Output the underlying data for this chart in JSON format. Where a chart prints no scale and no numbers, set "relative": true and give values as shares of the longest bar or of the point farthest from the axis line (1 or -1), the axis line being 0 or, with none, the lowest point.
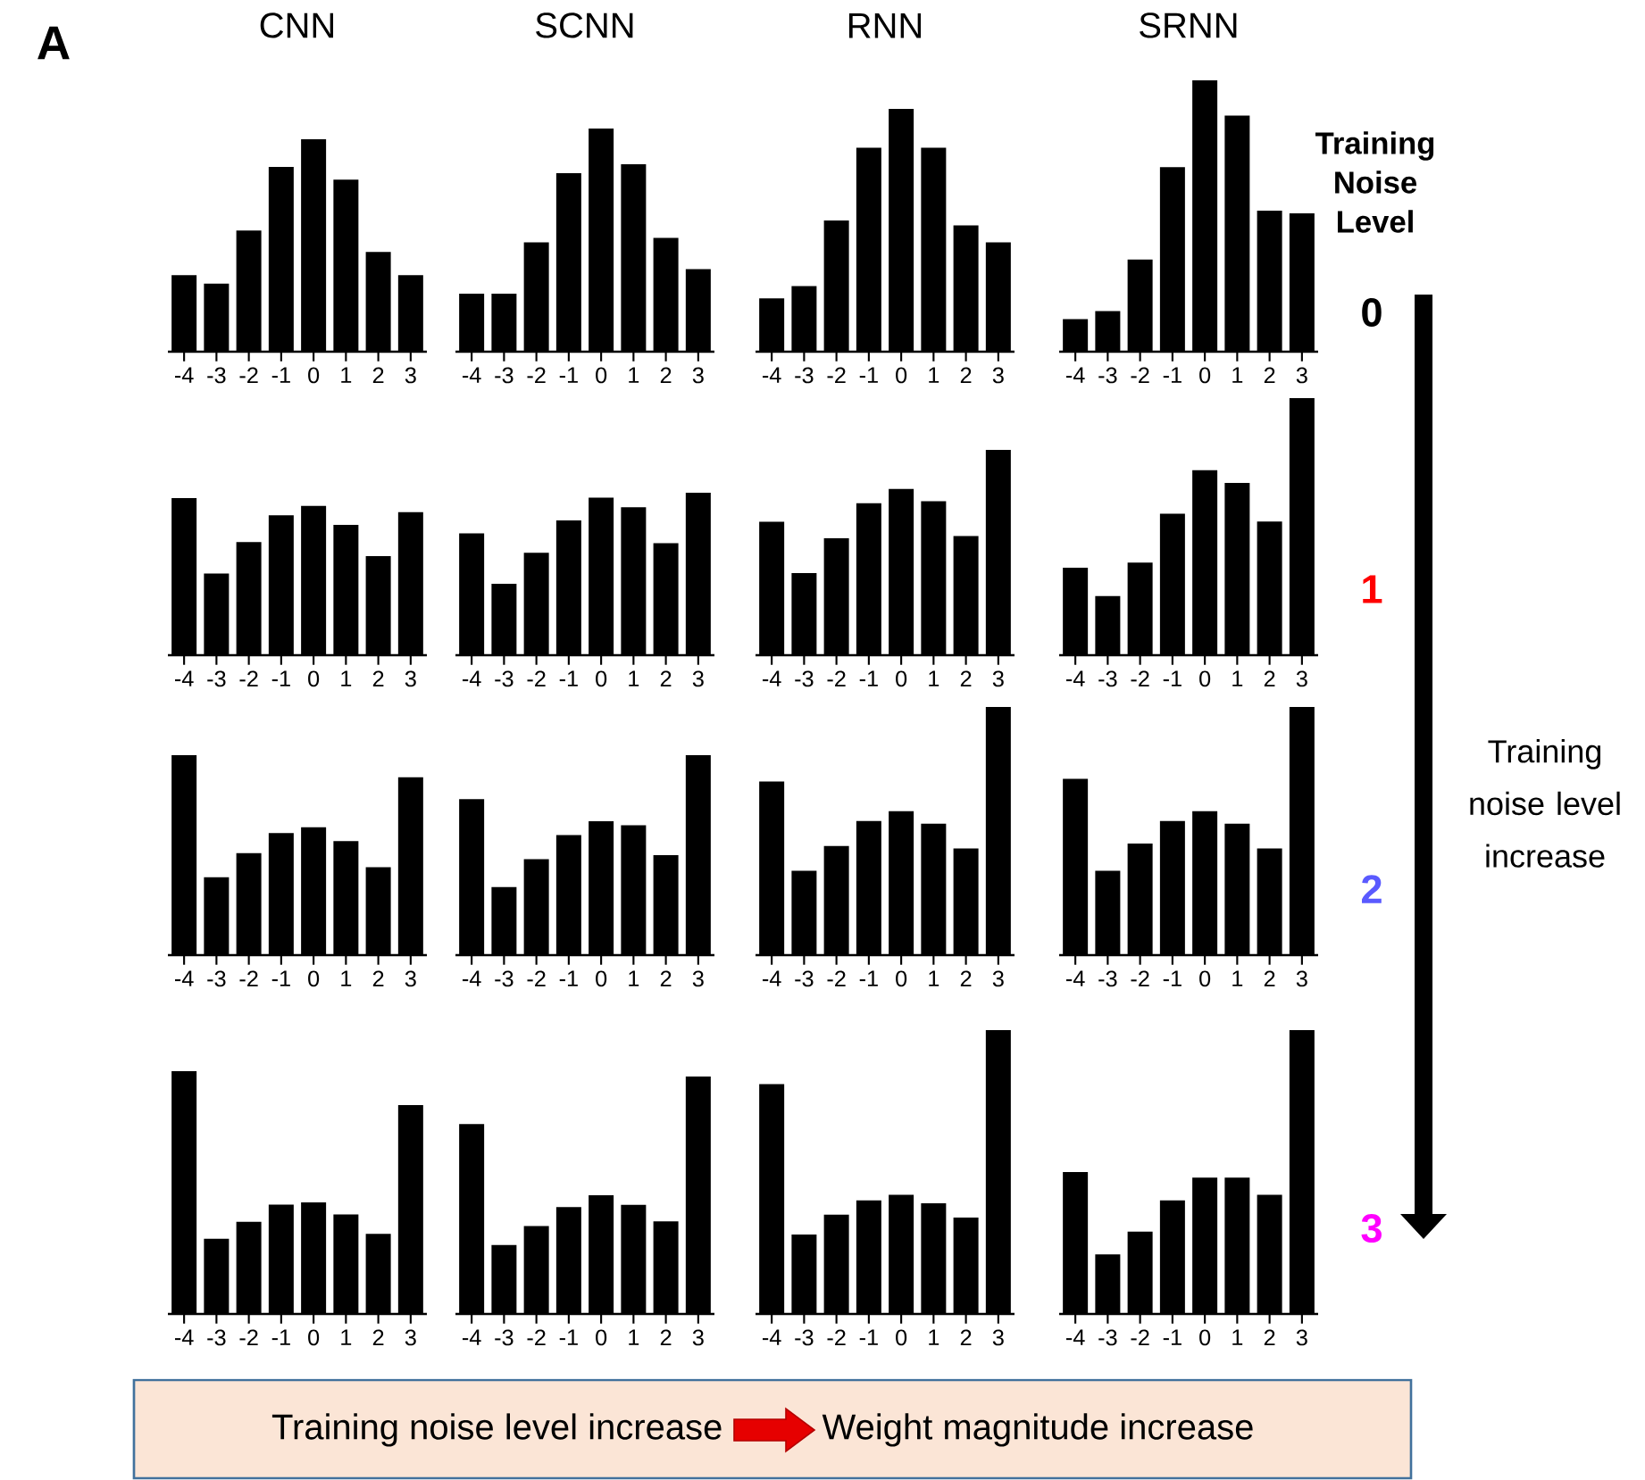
{
  "chart_data": [
    {
      "type": "bar",
      "title": "CNN",
      "relative": true,
      "color": "#000000",
      "categories": [
        "-4",
        "-3",
        "-2",
        "-1",
        "0",
        "1",
        "2",
        "3"
      ],
      "values": [
        0.36,
        0.32,
        0.57,
        0.87,
        1,
        0.81,
        0.47,
        0.36
      ]
    },
    {
      "type": "bar",
      "title": "SCNN",
      "relative": true,
      "color": "#000000",
      "categories": [
        "-4",
        "-3",
        "-2",
        "-1",
        "0",
        "1",
        "2",
        "3"
      ],
      "values": [
        0.26,
        0.26,
        0.49,
        0.8,
        1,
        0.84,
        0.51,
        0.37
      ]
    },
    {
      "type": "bar",
      "title": "RNN",
      "relative": true,
      "color": "#000000",
      "categories": [
        "-4",
        "-3",
        "-2",
        "-1",
        "0",
        "1",
        "2",
        "3"
      ],
      "values": [
        0.22,
        0.27,
        0.54,
        0.84,
        1,
        0.84,
        0.52,
        0.45
      ]
    },
    {
      "type": "bar",
      "title": "SRNN",
      "relative": true,
      "color": "#000000",
      "categories": [
        "-4",
        "-3",
        "-2",
        "-1",
        "0",
        "1",
        "2",
        "3"
      ],
      "values": [
        0.12,
        0.15,
        0.34,
        0.68,
        1,
        0.87,
        0.52,
        0.51
      ]
    },
    {
      "type": "bar",
      "relative": true,
      "color": "#000000",
      "categories": [
        "-4",
        "-3",
        "-2",
        "-1",
        "0",
        "1",
        "2",
        "3"
      ],
      "values": [
        1,
        0.52,
        0.72,
        0.89,
        0.95,
        0.83,
        0.63,
        0.91
      ]
    },
    {
      "type": "bar",
      "relative": true,
      "color": "#000000",
      "categories": [
        "-4",
        "-3",
        "-2",
        "-1",
        "0",
        "1",
        "2",
        "3"
      ],
      "values": [
        0.75,
        0.44,
        0.63,
        0.83,
        0.97,
        0.91,
        0.69,
        1
      ]
    },
    {
      "type": "bar",
      "relative": true,
      "color": "#000000",
      "categories": [
        "-4",
        "-3",
        "-2",
        "-1",
        "0",
        "1",
        "2",
        "3"
      ],
      "values": [
        0.65,
        0.4,
        0.57,
        0.74,
        0.81,
        0.75,
        0.58,
        1
      ]
    },
    {
      "type": "bar",
      "relative": true,
      "color": "#000000",
      "categories": [
        "-4",
        "-3",
        "-2",
        "-1",
        "0",
        "1",
        "2",
        "3"
      ],
      "values": [
        0.34,
        0.23,
        0.36,
        0.55,
        0.72,
        0.67,
        0.52,
        1
      ]
    },
    {
      "type": "bar",
      "relative": true,
      "color": "#000000",
      "categories": [
        "-4",
        "-3",
        "-2",
        "-1",
        "0",
        "1",
        "2",
        "3"
      ],
      "values": [
        1,
        0.39,
        0.51,
        0.61,
        0.64,
        0.57,
        0.44,
        0.89
      ]
    },
    {
      "type": "bar",
      "relative": true,
      "color": "#000000",
      "categories": [
        "-4",
        "-3",
        "-2",
        "-1",
        "0",
        "1",
        "2",
        "3"
      ],
      "values": [
        0.78,
        0.34,
        0.48,
        0.6,
        0.67,
        0.65,
        0.5,
        1
      ]
    },
    {
      "type": "bar",
      "relative": true,
      "color": "#000000",
      "categories": [
        "-4",
        "-3",
        "-2",
        "-1",
        "0",
        "1",
        "2",
        "3"
      ],
      "values": [
        0.7,
        0.34,
        0.44,
        0.54,
        0.58,
        0.53,
        0.43,
        1
      ]
    },
    {
      "type": "bar",
      "relative": true,
      "color": "#000000",
      "categories": [
        "-4",
        "-3",
        "-2",
        "-1",
        "0",
        "1",
        "2",
        "3"
      ],
      "values": [
        0.71,
        0.34,
        0.45,
        0.54,
        0.58,
        0.53,
        0.43,
        1
      ]
    },
    {
      "type": "bar",
      "relative": true,
      "color": "#000000",
      "categories": [
        "-4",
        "-3",
        "-2",
        "-1",
        "0",
        "1",
        "2",
        "3"
      ],
      "values": [
        1,
        0.31,
        0.38,
        0.45,
        0.46,
        0.41,
        0.33,
        0.86
      ]
    },
    {
      "type": "bar",
      "relative": true,
      "color": "#000000",
      "categories": [
        "-4",
        "-3",
        "-2",
        "-1",
        "0",
        "1",
        "2",
        "3"
      ],
      "values": [
        0.8,
        0.29,
        0.37,
        0.45,
        0.5,
        0.46,
        0.39,
        1
      ]
    },
    {
      "type": "bar",
      "relative": true,
      "color": "#000000",
      "categories": [
        "-4",
        "-3",
        "-2",
        "-1",
        "0",
        "1",
        "2",
        "3"
      ],
      "values": [
        0.81,
        0.28,
        0.35,
        0.4,
        0.42,
        0.39,
        0.34,
        1
      ]
    },
    {
      "type": "bar",
      "relative": true,
      "color": "#000000",
      "categories": [
        "-4",
        "-3",
        "-2",
        "-1",
        "0",
        "1",
        "2",
        "3"
      ],
      "values": [
        0.5,
        0.21,
        0.29,
        0.4,
        0.48,
        0.48,
        0.42,
        1
      ]
    },
    {
      "type": "other",
      "annotations": [
        "A",
        "Training Noise Level",
        "0",
        "1",
        "2",
        "3",
        "Training noise level increase",
        "Training noise level increase",
        "Weight magnitude increase"
      ]
    }
  ]
}
